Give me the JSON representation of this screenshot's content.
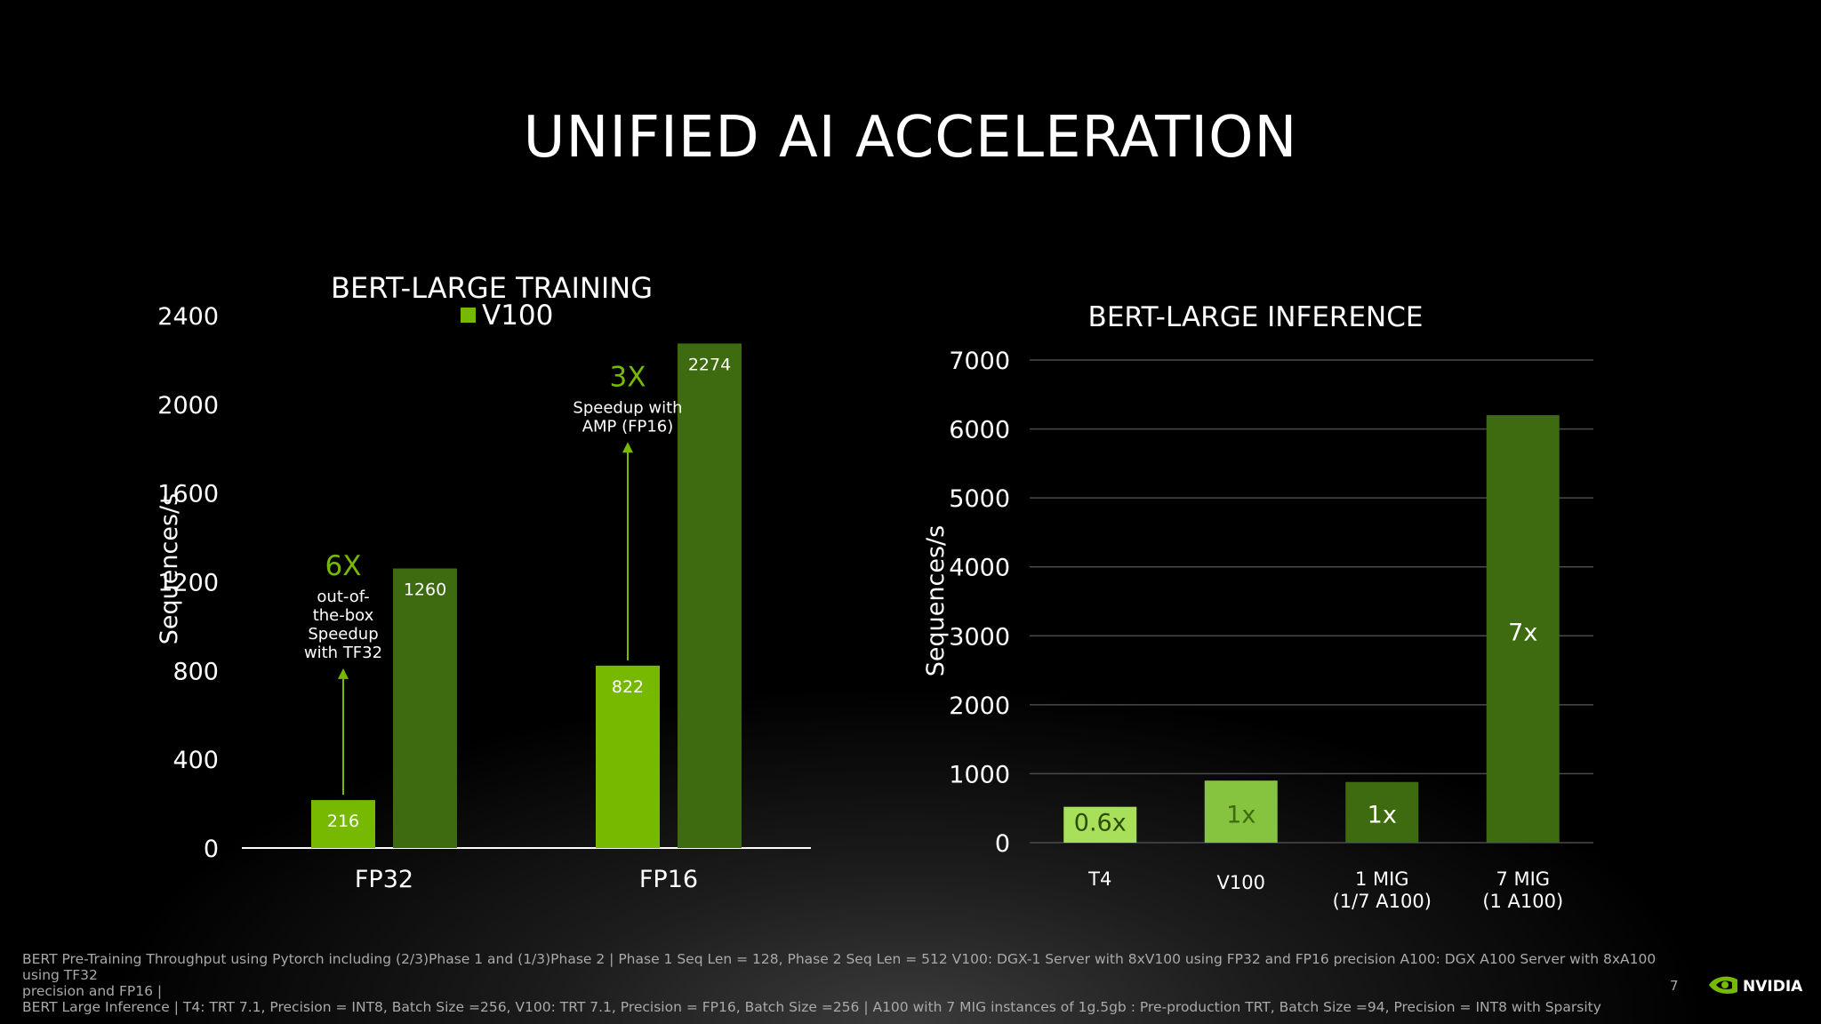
{
  "slide": {
    "title": "UNIFIED AI ACCELERATION",
    "page_number": "7",
    "footnote_lines": [
      "BERT Pre-Training Throughput using Pytorch including (2/3)Phase 1 and (1/3)Phase 2 | Phase 1 Seq Len = 128, Phase 2 Seq Len = 512 V100: DGX-1 Server with 8xV100 using FP32 and FP16 precision A100: DGX A100 Server with 8xA100 using TF32",
      "precision and FP16 |",
      "BERT Large Inference | T4: TRT 7.1, Precision = INT8, Batch Size =256, V100: TRT 7.1, Precision = FP16, Batch Size =256 | A100 with 7 MIG instances of 1g.5gb : Pre-production TRT, Batch Size =94, Precision = INT8 with Sparsity"
    ],
    "logo_text": "NVIDIA"
  },
  "chart_data": [
    {
      "type": "bar",
      "title": "BERT-LARGE TRAINING",
      "ylabel": "Sequences/s",
      "xlabel": "",
      "ylim": [
        0,
        2400
      ],
      "yticks": [
        "0",
        "400",
        "800",
        "1600",
        "2000",
        "2400"
      ],
      "ytick_values": [
        0,
        400,
        800,
        1600,
        2000,
        2400
      ],
      "ytick_overlap": {
        "label": "1200",
        "value": 1200
      },
      "grid": false,
      "categories": [
        "FP32",
        "FP16"
      ],
      "legend": {
        "placement": "top-center",
        "entries": [
          "V100"
        ]
      },
      "series": [
        {
          "name": "V100",
          "values": [
            216,
            822
          ],
          "labels": [
            "216",
            "822"
          ],
          "color": "#76b900"
        },
        {
          "values": [
            1260,
            2274
          ],
          "labels": [
            "1260",
            "2274"
          ],
          "color": "#3e6b10"
        }
      ],
      "annotations": [
        {
          "category": "FP32",
          "big": "6X",
          "lines": [
            "out-of-",
            "the-box",
            "Speedup",
            "with TF32"
          ],
          "arrow_from": 216,
          "arrow_to": 810
        },
        {
          "category": "FP16",
          "big": "3X",
          "lines": [
            "Speedup with",
            "AMP (FP16)"
          ],
          "arrow_from": 822,
          "arrow_to": 1830
        }
      ],
      "colors": {
        "light": "#76b900",
        "dark": "#3e6b10",
        "accent_text": "#76b900"
      }
    },
    {
      "type": "bar",
      "title": "BERT-LARGE INFERENCE",
      "ylabel": "Sequences/s",
      "xlabel": "",
      "ylim": [
        0,
        7000
      ],
      "yticks": [
        "0",
        "1000",
        "2000",
        "3000",
        "4000",
        "5000",
        "6000",
        "7000"
      ],
      "ytick_values": [
        0,
        1000,
        2000,
        3000,
        4000,
        5000,
        6000,
        7000
      ],
      "grid": true,
      "categories": [
        [
          "T4"
        ],
        [
          "V100"
        ],
        [
          "1 MIG",
          "(1/7 A100)"
        ],
        [
          "7 MIG",
          "(1 A100)"
        ]
      ],
      "values": [
        520,
        900,
        880,
        6200
      ],
      "bar_labels": [
        "0.6x",
        "1x",
        "1x",
        "7x"
      ],
      "bar_colors": [
        "#a8e05c",
        "#86c440",
        "#3e6b10",
        "#3e6b10"
      ],
      "label_colors": [
        "#2d4d06",
        "#3e6b10",
        "#ffffff",
        "#ffffff"
      ],
      "label_values": [
        300,
        420,
        420,
        3060
      ]
    }
  ]
}
